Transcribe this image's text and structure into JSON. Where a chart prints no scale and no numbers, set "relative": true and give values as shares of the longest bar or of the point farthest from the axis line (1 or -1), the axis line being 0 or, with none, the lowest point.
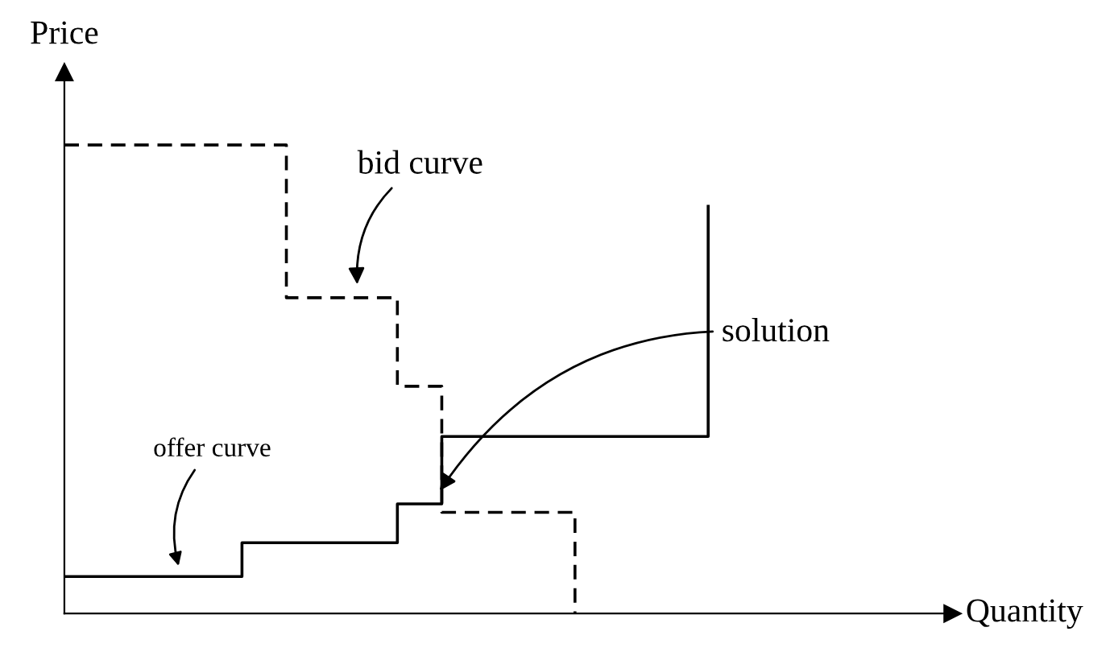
{
  "chart_data": {
    "type": "step",
    "relative": true,
    "xlabel": "Quantity",
    "ylabel": "Price",
    "tick_labels": false,
    "legend": false,
    "categories": [
      null,
      null,
      null,
      null,
      null,
      null,
      null,
      null,
      null,
      null,
      null,
      null,
      null,
      null,
      null,
      null,
      null,
      null,
      null,
      null,
      null,
      null,
      null,
      null,
      null,
      null,
      null,
      null,
      null,
      null,
      null,
      null,
      null,
      null,
      null,
      null,
      null,
      null,
      null,
      null,
      null
    ],
    "series": [
      {
        "color": "#000000",
        "line_style": "dashed",
        "values": [
          1,
          1,
          1,
          1,
          1,
          1,
          1,
          1,
          1,
          1,
          0.674,
          0.674,
          0.674,
          0.674,
          0.674,
          0.485,
          0.485,
          0.216,
          0.216,
          0.216,
          0.216,
          0.216,
          0.216,
          0,
          null,
          null,
          null,
          null,
          null,
          null,
          null,
          null,
          null,
          null,
          null,
          null,
          null,
          null,
          null,
          null,
          null
        ]
      },
      {
        "color": "#000000",
        "line_style": "solid",
        "values": [
          0.079,
          0.079,
          0.079,
          0.079,
          0.079,
          0.079,
          0.079,
          0.079,
          0.151,
          0.151,
          0.151,
          0.151,
          0.151,
          0.151,
          0.151,
          0.234,
          0.234,
          0.378,
          0.378,
          0.378,
          0.378,
          0.378,
          0.378,
          0.378,
          0.378,
          0.378,
          0.378,
          0.378,
          0.378,
          0.869,
          null,
          null,
          null,
          null,
          null,
          null,
          null,
          null,
          null,
          null,
          null
        ]
      }
    ],
    "annotations": [
      "bid curve",
      "offer curve",
      "solution"
    ]
  }
}
